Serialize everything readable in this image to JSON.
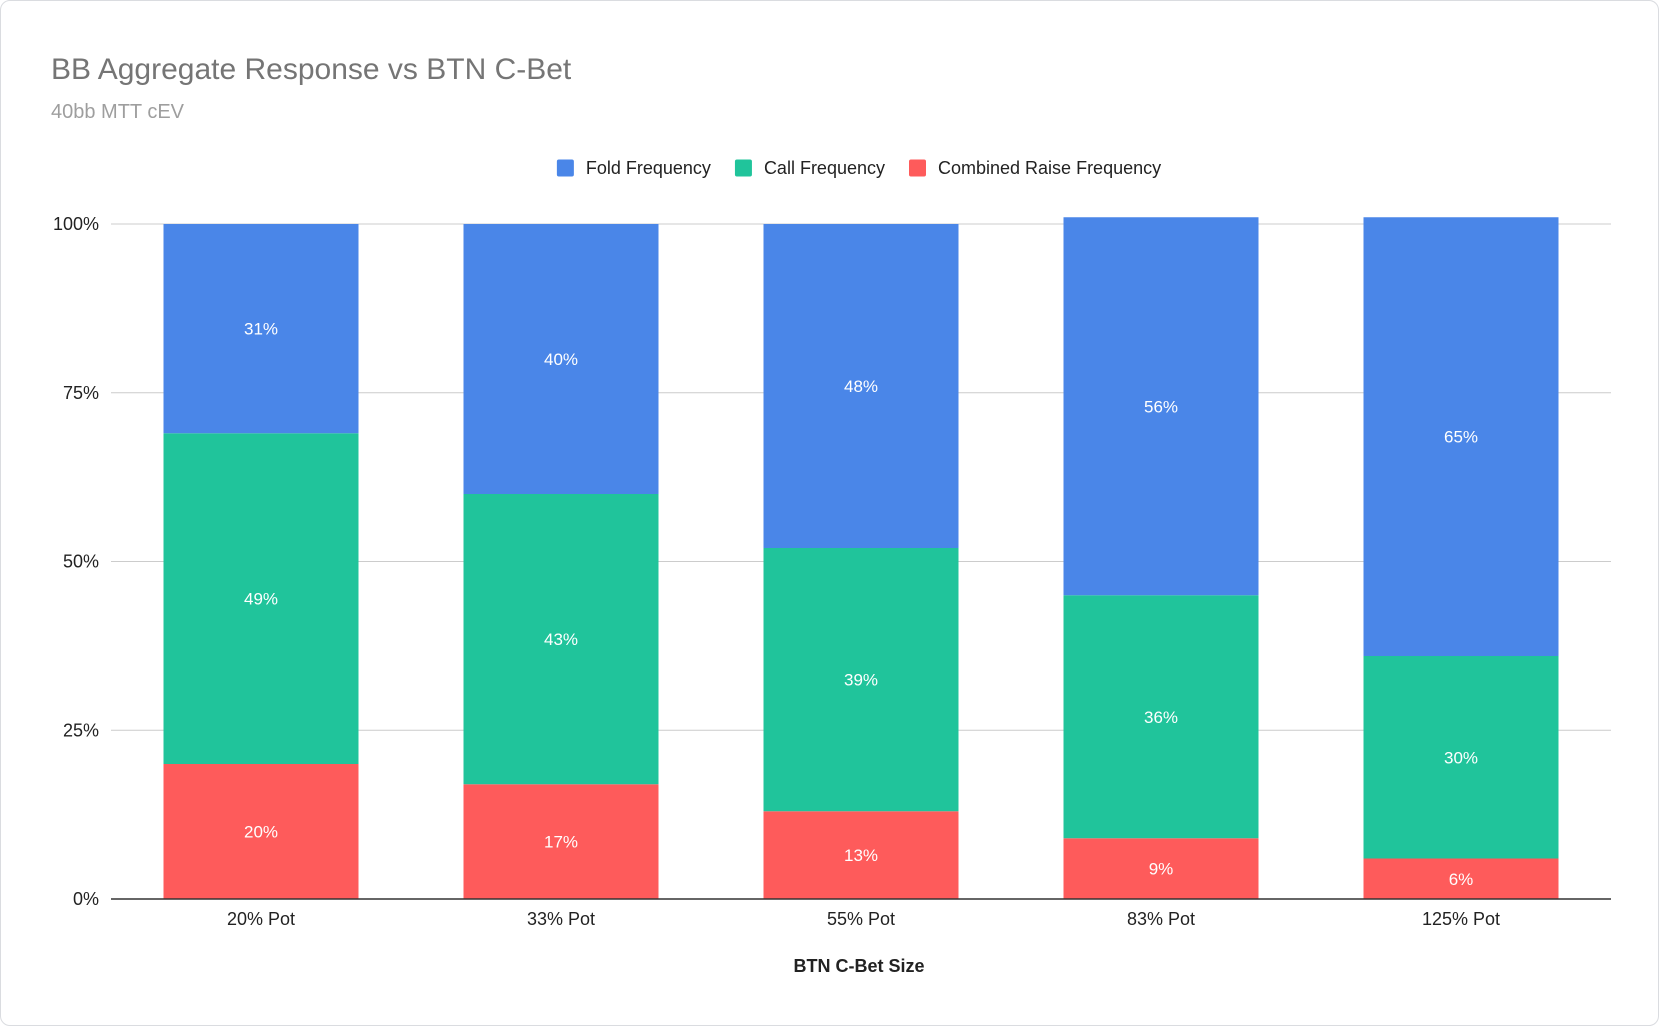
{
  "chart_data": {
    "type": "bar",
    "stacked": true,
    "title": "BB Aggregate Response vs BTN C-Bet",
    "subtitle": "40bb MTT cEV",
    "xlabel": "BTN C-Bet Size",
    "ylabel": "",
    "ylim": [
      0,
      100
    ],
    "y_ticks": [
      "0%",
      "25%",
      "50%",
      "75%",
      "100%"
    ],
    "grid": true,
    "legend_position": "top",
    "categories": [
      "20% Pot",
      "33% Pot",
      "55% Pot",
      "83% Pot",
      "125% Pot"
    ],
    "series": [
      {
        "name": "Combined Raise Frequency",
        "color": "#fe5b5b",
        "values": [
          20,
          17,
          13,
          9,
          6
        ],
        "labels": [
          "20%",
          "17%",
          "13%",
          "9%",
          "6%"
        ]
      },
      {
        "name": "Call Frequency",
        "color": "#20c49b",
        "values": [
          49,
          43,
          39,
          36,
          30
        ],
        "labels": [
          "49%",
          "43%",
          "39%",
          "36%",
          "30%"
        ]
      },
      {
        "name": "Fold Frequency",
        "color": "#4a86e8",
        "values": [
          31,
          40,
          48,
          56,
          65
        ],
        "labels": [
          "31%",
          "40%",
          "48%",
          "56%",
          "65%"
        ]
      }
    ],
    "legend_order": [
      "Fold Frequency",
      "Call Frequency",
      "Combined Raise Frequency"
    ],
    "colors": {
      "gridline": "#cccccc",
      "baseline": "#333333",
      "title": "#757575",
      "subtitle": "#9e9e9e",
      "label_text": "#ffffff"
    }
  }
}
